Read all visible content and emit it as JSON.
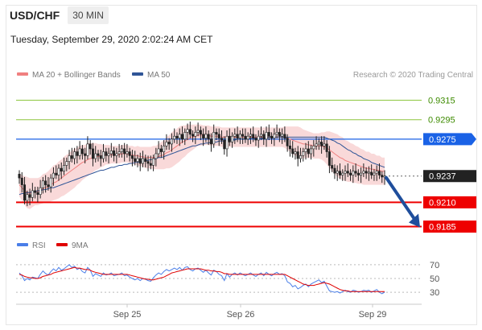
{
  "header": {
    "symbol": "USD/CHF",
    "interval": "30 MIN",
    "timestamp": "Tuesday, September 29, 2020 2:02:24 AM CET"
  },
  "legend": {
    "ma20_label": "MA 20 + Bollinger Bands",
    "ma20_color": "#f08080",
    "ma50_label": "MA 50",
    "ma50_color": "#2f5597",
    "credit": "Research © 2020 Trading Central"
  },
  "chart_data": [
    {
      "type": "candlestick",
      "x_tick_labels": [
        "Sep 25",
        "Sep 26",
        "Sep 29"
      ],
      "ylim": [
        0.9178,
        0.9332
      ],
      "levels": [
        {
          "value": 0.9315,
          "label": "0.9315",
          "color": "#8dc63f",
          "style": "resistance"
        },
        {
          "value": 0.9295,
          "label": "0.9295",
          "color": "#8dc63f",
          "style": "resistance"
        },
        {
          "value": 0.9275,
          "label": "0.9275",
          "color": "#1a62e6",
          "style": "pivot"
        },
        {
          "value": 0.9237,
          "label": "0.9237",
          "color": "#222222",
          "style": "last-price"
        },
        {
          "value": 0.921,
          "label": "0.9210",
          "color": "#ee0000",
          "style": "support"
        },
        {
          "value": 0.9185,
          "label": "0.9185",
          "color": "#ee0000",
          "style": "support"
        }
      ],
      "close": [
        0.9235,
        0.9228,
        0.9212,
        0.9218,
        0.9215,
        0.9222,
        0.922,
        0.9218,
        0.9225,
        0.9232,
        0.9228,
        0.9226,
        0.9235,
        0.924,
        0.9238,
        0.9245,
        0.9242,
        0.9248,
        0.9252,
        0.9258,
        0.9255,
        0.9262,
        0.9258,
        0.9265,
        0.926,
        0.9258,
        0.927,
        0.9265,
        0.9255,
        0.926,
        0.9258,
        0.9255,
        0.9262,
        0.9258,
        0.926,
        0.9263,
        0.9258,
        0.926,
        0.9262,
        0.9265,
        0.926,
        0.9262,
        0.9258,
        0.9255,
        0.9252,
        0.9255,
        0.925,
        0.9255,
        0.9252,
        0.925,
        0.9248,
        0.9255,
        0.926,
        0.9265,
        0.9262,
        0.9268,
        0.9272,
        0.927,
        0.9275,
        0.9278,
        0.9276,
        0.928,
        0.9275,
        0.9282,
        0.9285,
        0.928,
        0.9278,
        0.9282,
        0.9284,
        0.928,
        0.9276,
        0.928,
        0.9275,
        0.927,
        0.9282,
        0.928,
        0.9276,
        0.9274,
        0.9265,
        0.9278,
        0.9272,
        0.9278,
        0.928,
        0.9276,
        0.928,
        0.9278,
        0.9275,
        0.9278,
        0.928,
        0.9276,
        0.9274,
        0.9278,
        0.928,
        0.9275,
        0.9282,
        0.9278,
        0.9276,
        0.928,
        0.9282,
        0.9278,
        0.928,
        0.9276,
        0.9268,
        0.9265,
        0.926,
        0.9262,
        0.9255,
        0.9258,
        0.9262,
        0.9265,
        0.926,
        0.9265,
        0.9268,
        0.927,
        0.9272,
        0.9268,
        0.927,
        0.9262,
        0.9248,
        0.9245,
        0.924,
        0.9242,
        0.9238,
        0.924,
        0.9242,
        0.924,
        0.9238,
        0.9242,
        0.924,
        0.9238,
        0.924,
        0.9242,
        0.924,
        0.9241,
        0.9238,
        0.924,
        0.9242,
        0.9238,
        0.9236,
        0.9237
      ],
      "ma20": [
        0.9228,
        0.9225,
        0.9222,
        0.922,
        0.9219,
        0.922,
        0.9221,
        0.9221,
        0.9222,
        0.9224,
        0.9225,
        0.9226,
        0.9228,
        0.923,
        0.9231,
        0.9233,
        0.9235,
        0.9237,
        0.9239,
        0.9241,
        0.9243,
        0.9245,
        0.9247,
        0.9249,
        0.9251,
        0.9252,
        0.9254,
        0.9255,
        0.9256,
        0.9257,
        0.9257,
        0.9258,
        0.9258,
        0.9259,
        0.9259,
        0.9259,
        0.9259,
        0.9259,
        0.9259,
        0.926,
        0.926,
        0.926,
        0.9259,
        0.9259,
        0.9258,
        0.9258,
        0.9257,
        0.9257,
        0.9256,
        0.9256,
        0.9256,
        0.9256,
        0.9256,
        0.9257,
        0.9258,
        0.9259,
        0.9261,
        0.9262,
        0.9264,
        0.9266,
        0.9268,
        0.927,
        0.9272,
        0.9273,
        0.9275,
        0.9276,
        0.9277,
        0.9278,
        0.9279,
        0.9279,
        0.9279,
        0.9279,
        0.9279,
        0.9278,
        0.9278,
        0.9278,
        0.9278,
        0.9277,
        0.9277,
        0.9277,
        0.9277,
        0.9277,
        0.9277,
        0.9277,
        0.9277,
        0.9277,
        0.9277,
        0.9277,
        0.9277,
        0.9277,
        0.9277,
        0.9277,
        0.9277,
        0.9277,
        0.9277,
        0.9277,
        0.9277,
        0.9277,
        0.9277,
        0.9277,
        0.9277,
        0.9277,
        0.9276,
        0.9275,
        0.9274,
        0.9273,
        0.9272,
        0.9271,
        0.927,
        0.927,
        0.9269,
        0.9269,
        0.9268,
        0.9268,
        0.9268,
        0.9268,
        0.9267,
        0.9266,
        0.9264,
        0.9262,
        0.926,
        0.9258,
        0.9256,
        0.9255,
        0.9253,
        0.9252,
        0.9251,
        0.925,
        0.9249,
        0.9248,
        0.9247,
        0.9246,
        0.9245,
        0.9245,
        0.9244,
        0.9244,
        0.9243,
        0.9243,
        0.9242,
        0.9242
      ],
      "bb_width": [
        0.0012,
        0.0013,
        0.0015,
        0.0016,
        0.0016,
        0.0015,
        0.0014,
        0.0014,
        0.0014,
        0.0015,
        0.0015,
        0.0016,
        0.0017,
        0.0018,
        0.0018,
        0.0019,
        0.0019,
        0.002,
        0.002,
        0.002,
        0.002,
        0.002,
        0.0019,
        0.0019,
        0.0018,
        0.0017,
        0.0017,
        0.0016,
        0.0015,
        0.0014,
        0.0013,
        0.0012,
        0.0011,
        0.001,
        0.001,
        0.0009,
        0.0009,
        0.0009,
        0.0009,
        0.0009,
        0.0009,
        0.0009,
        0.0009,
        0.0009,
        0.0009,
        0.001,
        0.001,
        0.001,
        0.0011,
        0.0011,
        0.0011,
        0.0012,
        0.0012,
        0.0013,
        0.0014,
        0.0015,
        0.0016,
        0.0017,
        0.0018,
        0.0018,
        0.0018,
        0.0018,
        0.0017,
        0.0016,
        0.0015,
        0.0014,
        0.0013,
        0.0012,
        0.0011,
        0.0011,
        0.001,
        0.001,
        0.001,
        0.001,
        0.001,
        0.001,
        0.001,
        0.001,
        0.001,
        0.001,
        0.001,
        0.001,
        0.001,
        0.001,
        0.001,
        0.001,
        0.001,
        0.001,
        0.001,
        0.001,
        0.001,
        0.001,
        0.001,
        0.001,
        0.001,
        0.001,
        0.001,
        0.001,
        0.001,
        0.001,
        0.001,
        0.0011,
        0.0012,
        0.0013,
        0.0014,
        0.0015,
        0.0016,
        0.0016,
        0.0015,
        0.0014,
        0.0014,
        0.0013,
        0.0013,
        0.0013,
        0.0013,
        0.0014,
        0.0015,
        0.0017,
        0.0019,
        0.002,
        0.0021,
        0.0022,
        0.0022,
        0.0022,
        0.0021,
        0.0021,
        0.002,
        0.002,
        0.0019,
        0.0019,
        0.0018,
        0.0018,
        0.0017,
        0.0017,
        0.0016,
        0.0016,
        0.0015,
        0.0015,
        0.0014,
        0.0014
      ],
      "ma50": [
        0.9218,
        0.9219,
        0.9219,
        0.922,
        0.922,
        0.9221,
        0.9221,
        0.9222,
        0.9222,
        0.9223,
        0.9223,
        0.9224,
        0.9225,
        0.9225,
        0.9226,
        0.9227,
        0.9228,
        0.9229,
        0.923,
        0.9231,
        0.9232,
        0.9233,
        0.9234,
        0.9235,
        0.9236,
        0.9237,
        0.9238,
        0.9239,
        0.924,
        0.9241,
        0.9242,
        0.9243,
        0.9243,
        0.9244,
        0.9245,
        0.9246,
        0.9246,
        0.9247,
        0.9248,
        0.9248,
        0.9249,
        0.9249,
        0.925,
        0.925,
        0.9251,
        0.9251,
        0.9252,
        0.9252,
        0.9253,
        0.9253,
        0.9254,
        0.9254,
        0.9255,
        0.9256,
        0.9256,
        0.9257,
        0.9258,
        0.9259,
        0.926,
        0.9261,
        0.9262,
        0.9263,
        0.9264,
        0.9265,
        0.9266,
        0.9267,
        0.9268,
        0.9268,
        0.9269,
        0.927,
        0.927,
        0.9271,
        0.9271,
        0.9272,
        0.9272,
        0.9272,
        0.9273,
        0.9273,
        0.9273,
        0.9274,
        0.9274,
        0.9274,
        0.9274,
        0.9275,
        0.9275,
        0.9275,
        0.9275,
        0.9275,
        0.9276,
        0.9276,
        0.9276,
        0.9276,
        0.9276,
        0.9276,
        0.9276,
        0.9277,
        0.9277,
        0.9277,
        0.9277,
        0.9277,
        0.9277,
        0.9277,
        0.9277,
        0.9277,
        0.9277,
        0.9277,
        0.9277,
        0.9277,
        0.9277,
        0.9277,
        0.9277,
        0.9277,
        0.9277,
        0.9277,
        0.9277,
        0.9277,
        0.9277,
        0.9276,
        0.9275,
        0.9274,
        0.9273,
        0.9271,
        0.927,
        0.9268,
        0.9266,
        0.9264,
        0.9263,
        0.9261,
        0.926,
        0.9258,
        0.9257,
        0.9255,
        0.9254,
        0.9253,
        0.9251,
        0.925,
        0.9249,
        0.9248,
        0.9247,
        0.9246
      ],
      "forecast_arrow": {
        "from": 0.9237,
        "to": 0.9185,
        "color": "#1f4e9c"
      }
    },
    {
      "type": "line",
      "ylim": [
        22,
        78
      ],
      "y_tick_labels": [
        "70",
        "50",
        "30"
      ],
      "y_ticks": [
        70,
        50,
        30
      ],
      "series": [
        {
          "name": "RSI",
          "color": "#4a7ee8",
          "values": [
            58,
            54,
            47,
            50,
            48,
            52,
            51,
            50,
            56,
            61,
            57,
            55,
            60,
            64,
            61,
            66,
            62,
            64,
            67,
            70,
            66,
            68,
            63,
            65,
            60,
            58,
            66,
            62,
            53,
            57,
            55,
            53,
            58,
            55,
            56,
            58,
            54,
            55,
            56,
            58,
            54,
            55,
            52,
            50,
            48,
            50,
            47,
            50,
            49,
            47,
            46,
            51,
            55,
            58,
            56,
            60,
            63,
            61,
            63,
            65,
            63,
            66,
            62,
            66,
            67,
            63,
            61,
            64,
            65,
            62,
            59,
            62,
            58,
            55,
            62,
            60,
            56,
            54,
            47,
            57,
            52,
            56,
            58,
            55,
            58,
            56,
            54,
            56,
            58,
            55,
            53,
            56,
            58,
            54,
            59,
            56,
            54,
            57,
            59,
            56,
            57,
            54,
            45,
            43,
            38,
            40,
            35,
            37,
            40,
            42,
            38,
            42,
            44,
            46,
            48,
            44,
            46,
            39,
            32,
            31,
            30,
            31,
            29,
            31,
            33,
            31,
            30,
            33,
            32,
            30,
            31,
            33,
            32,
            33,
            30,
            32,
            34,
            30,
            28,
            30
          ]
        },
        {
          "name": "9MA",
          "color": "#e00000",
          "values": [
            56,
            55,
            53,
            52,
            51,
            51,
            50,
            50,
            51,
            53,
            54,
            55,
            56,
            58,
            59,
            60,
            61,
            62,
            63,
            64,
            65,
            66,
            65,
            65,
            64,
            63,
            63,
            62,
            60,
            59,
            58,
            57,
            56,
            56,
            56,
            56,
            56,
            56,
            56,
            56,
            56,
            56,
            55,
            54,
            53,
            52,
            51,
            50,
            49,
            49,
            48,
            48,
            49,
            50,
            51,
            52,
            54,
            56,
            58,
            59,
            60,
            61,
            62,
            63,
            64,
            64,
            64,
            64,
            64,
            64,
            63,
            62,
            62,
            61,
            61,
            60,
            60,
            59,
            57,
            57,
            56,
            56,
            56,
            56,
            56,
            56,
            56,
            56,
            56,
            56,
            56,
            56,
            56,
            56,
            56,
            56,
            56,
            56,
            56,
            56,
            56,
            56,
            54,
            52,
            50,
            48,
            46,
            44,
            42,
            41,
            40,
            40,
            40,
            41,
            42,
            43,
            44,
            43,
            42,
            40,
            38,
            36,
            34,
            33,
            32,
            32,
            31,
            31,
            31,
            31,
            31,
            31,
            31,
            31,
            31,
            31,
            31,
            31,
            31,
            31
          ]
        }
      ]
    }
  ]
}
